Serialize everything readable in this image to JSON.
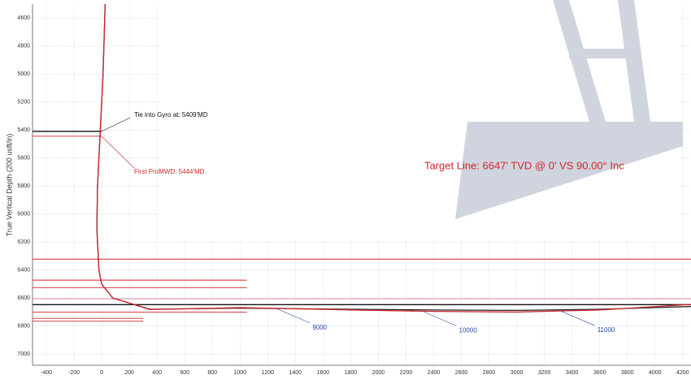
{
  "chart_data": {
    "type": "line",
    "ylabel": "True Vertical Depth (200 usft/in)",
    "xlim": [
      -500,
      4260
    ],
    "ylim": [
      4500,
      7080
    ],
    "y_reversed": true,
    "grid": true,
    "xticks": [
      -400,
      -200,
      0,
      200,
      400,
      600,
      800,
      1000,
      1200,
      1400,
      1600,
      1800,
      2000,
      2200,
      2400,
      2600,
      2800,
      3000,
      3200,
      3400,
      3600,
      3800,
      4000,
      4200
    ],
    "yticks": [
      4600,
      4800,
      5000,
      5200,
      5400,
      5600,
      5800,
      6000,
      6200,
      6400,
      6600,
      6800,
      7000
    ],
    "series": [
      {
        "color": "#222222",
        "x": [
          25,
          10,
          -10,
          -30,
          -35,
          -20,
          0,
          80,
          350,
          1000,
          1800,
          2400,
          3000,
          3600,
          4260
        ],
        "values": [
          4500,
          5000,
          5400,
          5800,
          6100,
          6400,
          6500,
          6600,
          6680,
          6672,
          6680,
          6685,
          6688,
          6680,
          6660
        ]
      },
      {
        "color": "#d0262b",
        "x": [
          25,
          10,
          -10,
          -30,
          -35,
          -20,
          0,
          80,
          350,
          1000,
          1800,
          2400,
          3000,
          3600,
          4260
        ],
        "values": [
          4500,
          5000,
          5400,
          5800,
          6100,
          6400,
          6500,
          6600,
          6682,
          6668,
          6685,
          6695,
          6700,
          6685,
          6645
        ]
      }
    ],
    "lines": [
      {
        "tvd": 6322,
        "vs_start": -500,
        "vs_end": 4260,
        "color": "#d0262b"
      },
      {
        "tvd": 6472,
        "vs_start": -500,
        "vs_end": 1050,
        "color": "#d0262b"
      },
      {
        "tvd": 6525,
        "vs_start": -500,
        "vs_end": 1050,
        "color": "#d0262b"
      },
      {
        "tvd": 6605,
        "vs_start": -500,
        "vs_end": 4260,
        "color": "#e07a9a"
      },
      {
        "tvd": 6647,
        "vs_start": -500,
        "vs_end": 4260,
        "color": "#111111"
      },
      {
        "tvd": 6700,
        "vs_start": -500,
        "vs_end": 1050,
        "color": "#d0262b"
      },
      {
        "tvd": 6745,
        "vs_start": -500,
        "vs_end": 300,
        "color": "#d0262b"
      },
      {
        "tvd": 6765,
        "vs_start": -500,
        "vs_end": 300,
        "color": "#d0262b"
      },
      {
        "tvd": 5409,
        "vs_start": -500,
        "vs_end": 0,
        "color": "#111111"
      },
      {
        "tvd": 5444,
        "vs_start": -500,
        "vs_end": 0,
        "color": "#d0262b"
      }
    ],
    "annotations": [
      {
        "text": "Tie into Gyro at: 5409'MD",
        "color": "#111111"
      },
      {
        "text": "First ProMWD: 5444'MD",
        "color": "#d0262b"
      },
      {
        "text": "Target Line: 6647' TVD @ 0' VS 90.00° Inc",
        "color": "#d0262b"
      }
    ],
    "md_markers": [
      {
        "md": 9000,
        "vs": 1259
      },
      {
        "md": 10000,
        "vs": 2318
      },
      {
        "md": 11000,
        "vs": 3318
      }
    ]
  }
}
